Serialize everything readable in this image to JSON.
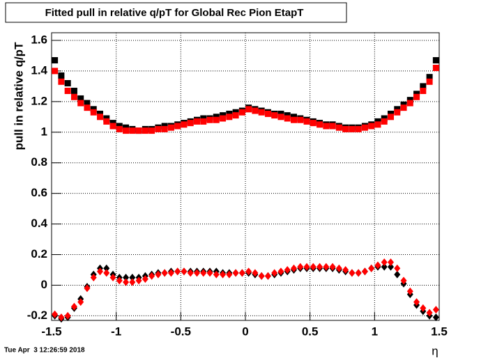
{
  "chart_data": {
    "type": "scatter",
    "title": "Fitted pull in relative q/pT for Global Rec Pion EtapT",
    "y_label": "pull in relative q/pT",
    "x_label": "η",
    "timestamp": "Tue Apr  3 12:26:59 2018",
    "x": [
      -1.475,
      -1.425,
      -1.375,
      -1.325,
      -1.275,
      -1.225,
      -1.175,
      -1.125,
      -1.075,
      -1.025,
      -0.975,
      -0.925,
      -0.875,
      -0.825,
      -0.775,
      -0.725,
      -0.675,
      -0.625,
      -0.575,
      -0.525,
      -0.475,
      -0.425,
      -0.375,
      -0.325,
      -0.275,
      -0.225,
      -0.175,
      -0.125,
      -0.075,
      -0.025,
      0.025,
      0.075,
      0.125,
      0.175,
      0.225,
      0.275,
      0.325,
      0.375,
      0.425,
      0.475,
      0.525,
      0.575,
      0.625,
      0.675,
      0.725,
      0.775,
      0.825,
      0.875,
      0.925,
      0.975,
      1.025,
      1.075,
      1.125,
      1.175,
      1.225,
      1.275,
      1.325,
      1.375,
      1.425,
      1.475
    ],
    "series": [
      {
        "color": "#000000",
        "marker": "square",
        "values": [
          1.47,
          1.37,
          1.32,
          1.27,
          1.22,
          1.19,
          1.15,
          1.12,
          1.09,
          1.06,
          1.04,
          1.03,
          1.02,
          1.01,
          1.02,
          1.02,
          1.03,
          1.04,
          1.04,
          1.05,
          1.06,
          1.07,
          1.08,
          1.09,
          1.09,
          1.1,
          1.11,
          1.12,
          1.13,
          1.14,
          1.16,
          1.15,
          1.14,
          1.13,
          1.12,
          1.12,
          1.11,
          1.1,
          1.09,
          1.08,
          1.07,
          1.06,
          1.05,
          1.05,
          1.04,
          1.03,
          1.03,
          1.03,
          1.04,
          1.05,
          1.07,
          1.09,
          1.12,
          1.15,
          1.18,
          1.21,
          1.25,
          1.3,
          1.36,
          1.47
        ]
      },
      {
        "color": "#ff0000",
        "marker": "square",
        "values": [
          1.4,
          1.33,
          1.27,
          1.23,
          1.19,
          1.16,
          1.13,
          1.1,
          1.07,
          1.04,
          1.02,
          1.01,
          1.01,
          1.01,
          1.01,
          1.01,
          1.02,
          1.02,
          1.03,
          1.04,
          1.05,
          1.06,
          1.07,
          1.07,
          1.08,
          1.08,
          1.09,
          1.1,
          1.11,
          1.13,
          1.15,
          1.14,
          1.13,
          1.12,
          1.11,
          1.1,
          1.09,
          1.08,
          1.08,
          1.07,
          1.06,
          1.05,
          1.04,
          1.04,
          1.03,
          1.02,
          1.02,
          1.02,
          1.03,
          1.04,
          1.05,
          1.07,
          1.1,
          1.13,
          1.16,
          1.19,
          1.23,
          1.27,
          1.33,
          1.42
        ]
      },
      {
        "color": "#000000",
        "marker": "diamond",
        "values": [
          -0.2,
          -0.22,
          -0.21,
          -0.15,
          -0.09,
          -0.01,
          0.07,
          0.11,
          0.11,
          0.07,
          0.05,
          0.05,
          0.05,
          0.05,
          0.06,
          0.07,
          0.08,
          0.08,
          0.09,
          0.09,
          0.09,
          0.09,
          0.09,
          0.09,
          0.09,
          0.09,
          0.08,
          0.08,
          0.08,
          0.08,
          0.08,
          0.07,
          0.06,
          0.06,
          0.07,
          0.08,
          0.09,
          0.1,
          0.11,
          0.11,
          0.11,
          0.11,
          0.11,
          0.11,
          0.1,
          0.09,
          0.08,
          0.08,
          0.09,
          0.11,
          0.12,
          0.12,
          0.12,
          0.07,
          0.01,
          -0.06,
          -0.13,
          -0.17,
          -0.2,
          -0.21
        ]
      },
      {
        "color": "#ff0000",
        "marker": "diamond",
        "values": [
          -0.19,
          -0.21,
          -0.2,
          -0.14,
          -0.11,
          -0.02,
          0.05,
          0.09,
          0.08,
          0.05,
          0.03,
          0.02,
          0.02,
          0.03,
          0.04,
          0.06,
          0.07,
          0.08,
          0.08,
          0.09,
          0.09,
          0.08,
          0.08,
          0.08,
          0.08,
          0.07,
          0.07,
          0.07,
          0.08,
          0.08,
          0.09,
          0.08,
          0.06,
          0.06,
          0.08,
          0.09,
          0.1,
          0.11,
          0.12,
          0.12,
          0.12,
          0.12,
          0.12,
          0.12,
          0.11,
          0.1,
          0.08,
          0.08,
          0.09,
          0.11,
          0.13,
          0.15,
          0.15,
          0.11,
          0.03,
          -0.04,
          -0.11,
          -0.15,
          -0.18,
          -0.16
        ]
      }
    ],
    "xlim": [
      -1.5,
      1.5
    ],
    "xticks": [
      -1.5,
      -1,
      -0.5,
      0,
      0.5,
      1,
      1.5
    ],
    "ylim": [
      -0.23,
      1.65
    ],
    "yticks": [
      -0.2,
      0,
      0.2,
      0.4,
      0.6,
      0.8,
      1,
      1.2,
      1.4,
      1.6
    ],
    "grid": true
  }
}
